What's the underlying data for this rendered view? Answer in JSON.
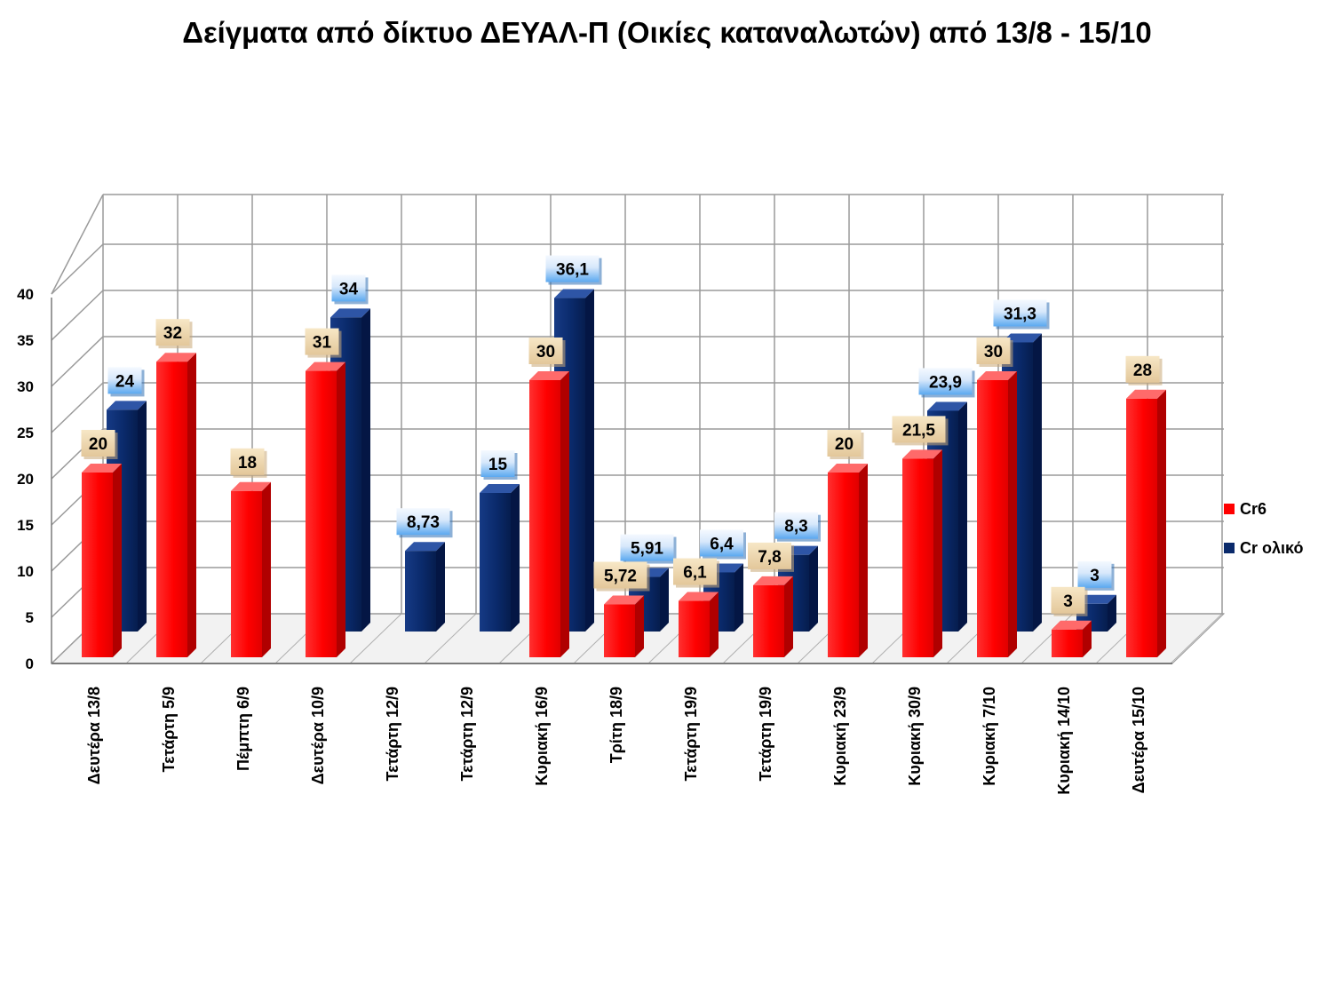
{
  "chart_data": {
    "type": "bar",
    "title": "Δείγματα από δίκτυο ΔΕΥΑΛ-Π (Οικίες καταναλωτών) από 13/8 - 15/10",
    "xlabel": "",
    "ylabel": "",
    "ylim": [
      0,
      40
    ],
    "yticks": [
      "0",
      "5",
      "10",
      "15",
      "20",
      "25",
      "30",
      "35",
      "40"
    ],
    "grid": true,
    "legend_position": "right",
    "categories": [
      "Δευτέρα 13/8",
      "Τετάρτη 5/9",
      "Πέμπτη 6/9",
      "Δευτέρα 10/9",
      "Τετάρτη 12/9",
      "Τετάρτη 12/9",
      "Κυριακή 16/9",
      "Τρίτη 18/9",
      "Τετάρτη 19/9",
      "Τετάρτη 19/9",
      "Κυριακή 23/9",
      "Κυριακή 30/9",
      "Κυριακή 7/10",
      "Κυριακή 14/10",
      "Δευτέρα 15/10"
    ],
    "series": [
      {
        "name": "Cr6",
        "color": "#ff0000",
        "values": [
          20,
          32,
          18,
          31,
          null,
          null,
          30,
          5.72,
          6.1,
          7.8,
          20,
          21.5,
          30,
          3,
          28
        ],
        "labels": [
          "20",
          "32",
          "18",
          "31",
          "",
          "",
          "30",
          "5,72",
          "6,1",
          "7,8",
          "20",
          "21,5",
          "30",
          "3",
          "28"
        ]
      },
      {
        "name": "Cr ολικό",
        "color": "#0a2a6b",
        "values": [
          24,
          null,
          null,
          34,
          8.73,
          15,
          36.1,
          5.91,
          6.4,
          8.3,
          null,
          23.9,
          31.3,
          3,
          null
        ],
        "labels": [
          "24",
          "",
          "",
          "34",
          "8,73",
          "15",
          "36,1",
          "5,91",
          "6,4",
          "8,3",
          "",
          "23,9",
          "31,3",
          "3",
          ""
        ]
      }
    ]
  }
}
